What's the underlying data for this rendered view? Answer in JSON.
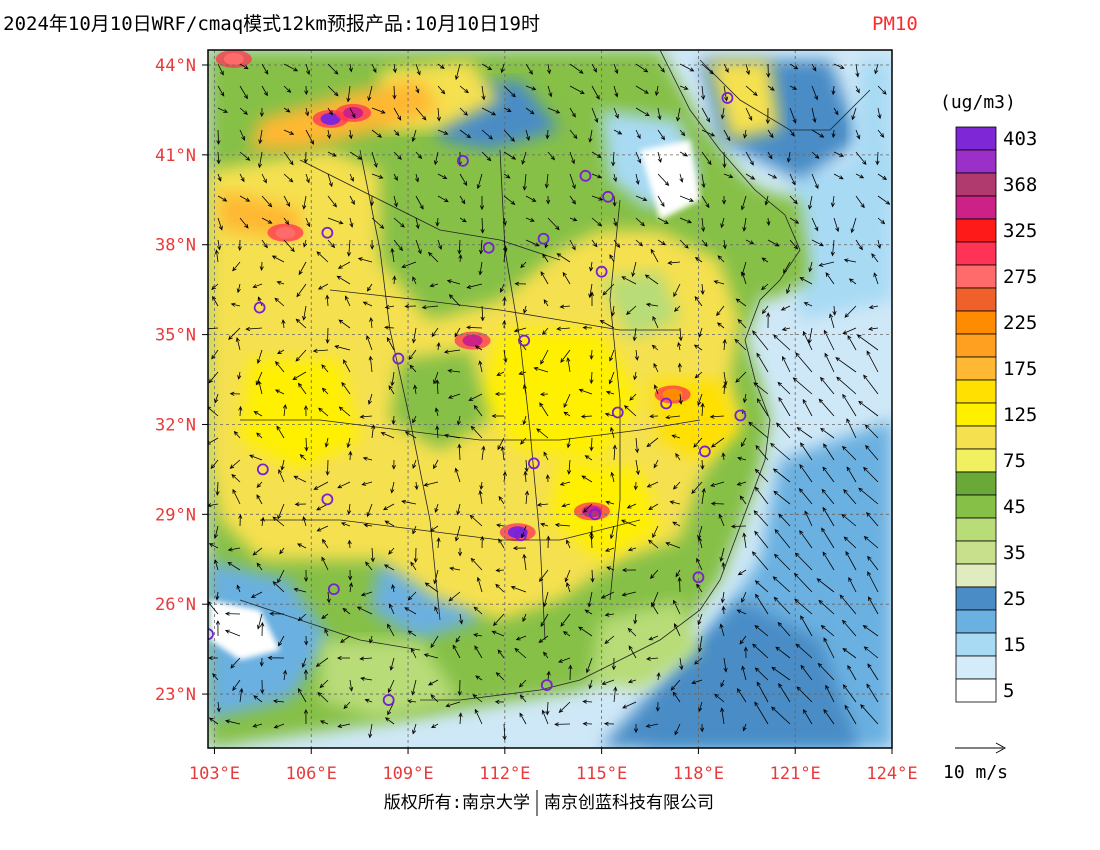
{
  "title": {
    "main": "2024年10月10日WRF/cmaq模式12km预报产品:10月10日19时",
    "pollutant": "PM10",
    "pollutant_color": "#ff2a2a"
  },
  "lat_labels": [
    "44°N",
    "41°N",
    "38°N",
    "35°N",
    "32°N",
    "29°N",
    "26°N",
    "23°N"
  ],
  "lon_labels": [
    "103°E",
    "106°E",
    "109°E",
    "112°E",
    "115°E",
    "118°E",
    "121°E",
    "124°E"
  ],
  "axis_label_color": "#e83a3a",
  "legend": {
    "unit": "(ug/m3)",
    "levels": [
      {
        "label": "403",
        "color": "#7d27d6"
      },
      {
        "label": "",
        "color": "#9b30c8"
      },
      {
        "label": "368",
        "color": "#b03a6e"
      },
      {
        "label": "",
        "color": "#cc2288"
      },
      {
        "label": "325",
        "color": "#ff1a1a"
      },
      {
        "label": "",
        "color": "#ff3355"
      },
      {
        "label": "275",
        "color": "#ff6a6a"
      },
      {
        "label": "",
        "color": "#f0602a"
      },
      {
        "label": "225",
        "color": "#ff8c00"
      },
      {
        "label": "",
        "color": "#ffa020"
      },
      {
        "label": "175",
        "color": "#ffb833"
      },
      {
        "label": "",
        "color": "#ffe000"
      },
      {
        "label": "125",
        "color": "#fff000"
      },
      {
        "label": "",
        "color": "#f5e050"
      },
      {
        "label": "75",
        "color": "#f0f060"
      },
      {
        "label": "",
        "color": "#6aa838"
      },
      {
        "label": "45",
        "color": "#86c046"
      },
      {
        "label": "",
        "color": "#b8dc78"
      },
      {
        "label": "35",
        "color": "#c8e08c"
      },
      {
        "label": "",
        "color": "#e0ecc0"
      },
      {
        "label": "25",
        "color": "#4a8cc6"
      },
      {
        "label": "",
        "color": "#6ab0e0"
      },
      {
        "label": "15",
        "color": "#a8daf4"
      },
      {
        "label": "",
        "color": "#d4ecfa"
      },
      {
        "label": "5",
        "color": "#ffffff"
      }
    ]
  },
  "wind_scale": {
    "label": "10 m/s"
  },
  "footer": {
    "left": "版权所有:南京大学",
    "right": "南京创蓝科技有限公司"
  },
  "stations": [
    {
      "lon": 118.9,
      "lat": 42.9
    },
    {
      "lon": 110.7,
      "lat": 40.8
    },
    {
      "lon": 114.5,
      "lat": 40.3
    },
    {
      "lon": 115.2,
      "lat": 39.6
    },
    {
      "lon": 106.5,
      "lat": 38.4
    },
    {
      "lon": 111.5,
      "lat": 37.9
    },
    {
      "lon": 113.2,
      "lat": 38.2
    },
    {
      "lon": 115.0,
      "lat": 37.1
    },
    {
      "lon": 104.4,
      "lat": 35.9
    },
    {
      "lon": 112.6,
      "lat": 34.8
    },
    {
      "lon": 108.7,
      "lat": 34.2
    },
    {
      "lon": 117.0,
      "lat": 32.7
    },
    {
      "lon": 115.5,
      "lat": 32.4
    },
    {
      "lon": 119.3,
      "lat": 32.3
    },
    {
      "lon": 118.2,
      "lat": 31.1
    },
    {
      "lon": 104.5,
      "lat": 30.5
    },
    {
      "lon": 112.9,
      "lat": 30.7
    },
    {
      "lon": 106.5,
      "lat": 29.5
    },
    {
      "lon": 114.8,
      "lat": 29.0
    },
    {
      "lon": 112.5,
      "lat": 28.3
    },
    {
      "lon": 118.0,
      "lat": 26.9
    },
    {
      "lon": 106.7,
      "lat": 26.5
    },
    {
      "lon": 102.8,
      "lat": 25.0
    },
    {
      "lon": 108.4,
      "lat": 22.8
    },
    {
      "lon": 113.3,
      "lat": 23.3
    }
  ],
  "hotspots": [
    {
      "lon": 106.6,
      "lat": 42.2,
      "level": 403
    },
    {
      "lon": 107.3,
      "lat": 42.4,
      "level": 368
    },
    {
      "lon": 111.0,
      "lat": 34.8,
      "level": 368
    },
    {
      "lon": 112.4,
      "lat": 28.4,
      "level": 403
    },
    {
      "lon": 114.7,
      "lat": 29.1,
      "level": 368
    },
    {
      "lon": 105.2,
      "lat": 38.4,
      "level": 275
    },
    {
      "lon": 103.6,
      "lat": 44.2,
      "level": 275
    },
    {
      "lon": 117.2,
      "lat": 33.0,
      "level": 225
    }
  ]
}
